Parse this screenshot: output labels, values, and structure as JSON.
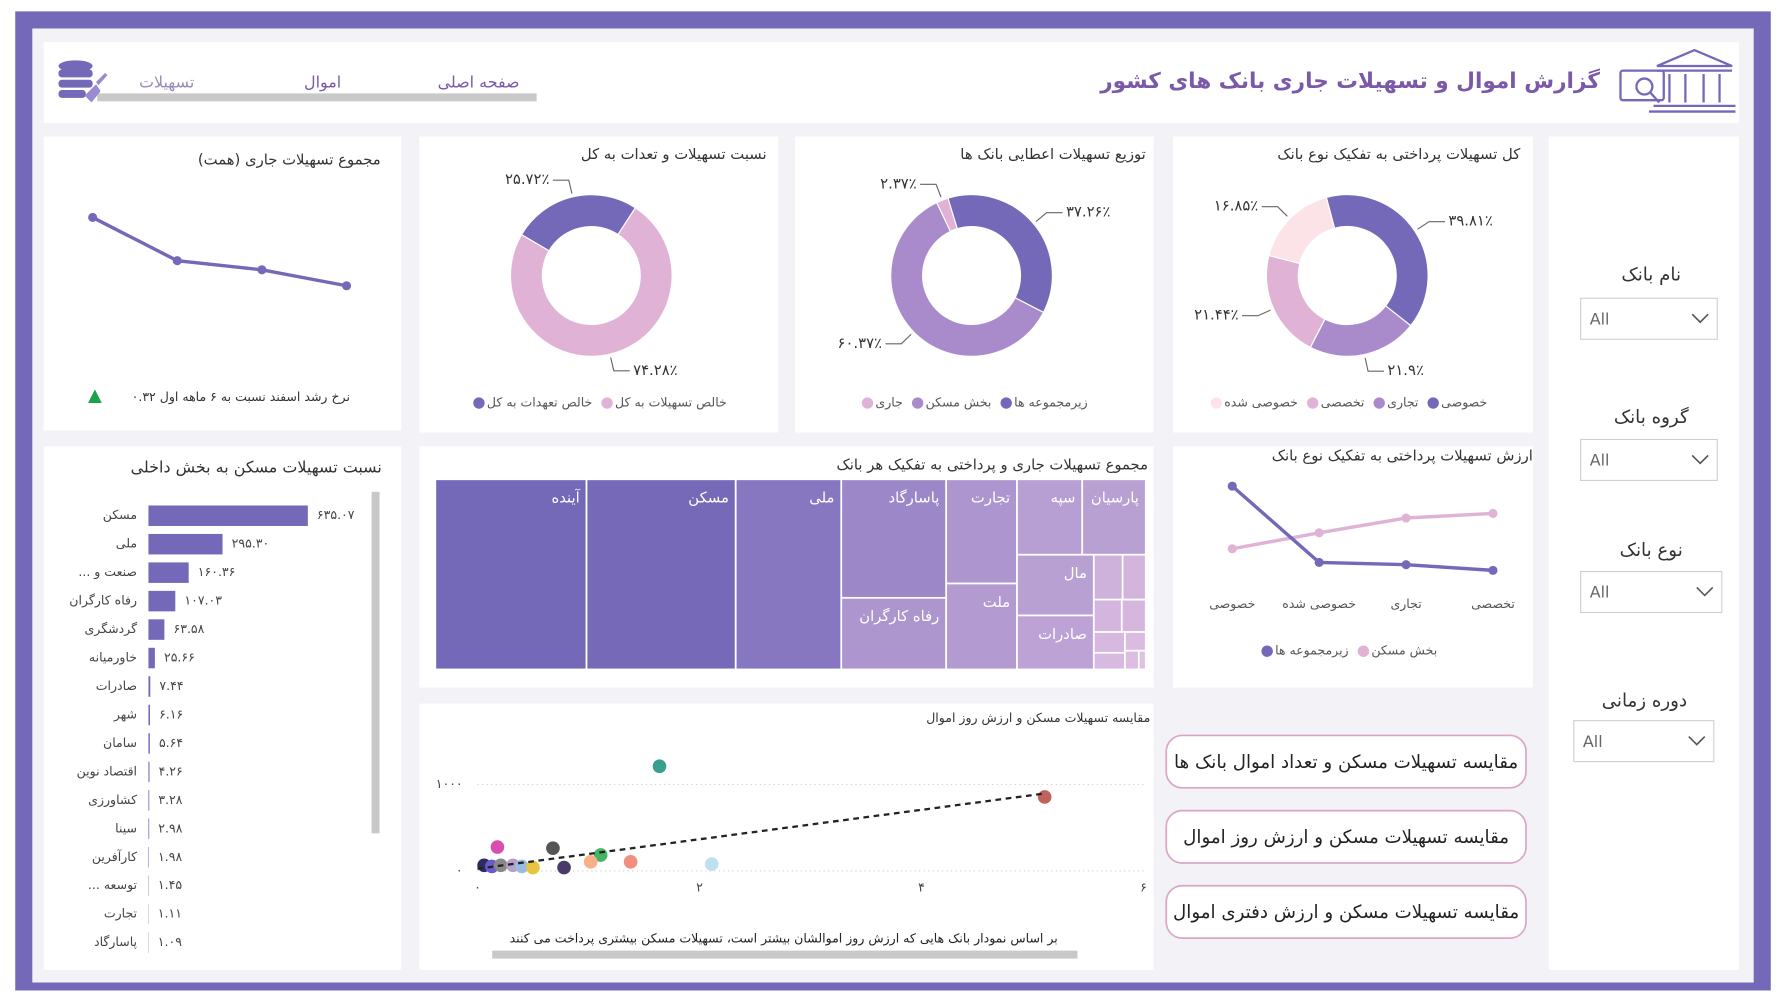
{
  "header": {
    "title": "گزارش اموال و تسهیلات جاری بانک های کشور",
    "nav": [
      "صفحه اصلی",
      "اموال",
      "تسهیلات"
    ]
  },
  "slicers": [
    {
      "label": "نام بانک",
      "value": "All"
    },
    {
      "label": "گروه بانک",
      "value": "All"
    },
    {
      "label": "نوع بانک",
      "value": "All"
    },
    {
      "label": "دوره زمانی",
      "value": "All"
    }
  ],
  "buttons": [
    "مقایسه تسهیلات مسکن و تعداد اموال بانک ها",
    "مقایسه تسهیلات مسکن و ارزش روز اموال",
    "مقایسه تسهیلات مسکن و ارزش دفتری اموال"
  ],
  "chart_data": [
    {
      "type": "line",
      "title": "مجموع تسهیلات جاری (همت)",
      "values": [
        8.5,
        6.6,
        6.2,
        5.5
      ],
      "color": "#7468b8",
      "annotation": "نرخ رشد اسفند نسبت به ۶ ماهه اول ۰.۳۲"
    },
    {
      "type": "pie",
      "donut": true,
      "title": "نسبت تسهیلات و تعدات به کل",
      "categories": [
        "خالص تسهیلات به کل",
        "خالص تعهدات به کل"
      ],
      "values": [
        74.28,
        25.72
      ],
      "value_labels": [
        "۷۴.۲۸٪",
        "۲۵.۷۲٪"
      ],
      "colors": [
        "#e0b3d6",
        "#7468b8"
      ]
    },
    {
      "type": "pie",
      "donut": true,
      "title": "توزیع تسهیلات اعطایی بانک ها",
      "categories": [
        "زیرمجموعه ها",
        "بخش مسکن",
        "جاری"
      ],
      "values": [
        37.26,
        60.37,
        2.37
      ],
      "value_labels": [
        "۳۷.۲۶٪",
        "۶۰.۳۷٪",
        "۲.۳۷٪"
      ],
      "colors": [
        "#7468b8",
        "#a98bcc",
        "#e0b3d6"
      ]
    },
    {
      "type": "pie",
      "donut": true,
      "title": "کل تسهیلات پرداختی به تفکیک نوع بانک",
      "categories": [
        "خصوصی",
        "تجاری",
        "تخصصی",
        "خصوصی شده"
      ],
      "values": [
        39.81,
        21.9,
        21.44,
        16.85
      ],
      "value_labels": [
        "۳۹.۸۱٪",
        "۲۱.۹٪",
        "۲۱.۴۴٪",
        "۱۶.۸۵٪"
      ],
      "colors": [
        "#7468b8",
        "#a98bcc",
        "#e0b3d6",
        "#fbe3e8"
      ]
    },
    {
      "type": "bar",
      "orientation": "horizontal",
      "title": "نسبت تسهیلات مسکن به بخش داخلی",
      "categories": [
        "مسکن",
        "ملی",
        "صنعت و ...",
        "رفاه کارگران",
        "گردشگری",
        "خاورمیانه",
        "صادرات",
        "شهر",
        "سامان",
        "اقتصاد نوین",
        "کشاورزی",
        "سینا",
        "کارآفرین",
        "توسعه ...",
        "تجارت",
        "پاسارگاد"
      ],
      "values": [
        635.07,
        295.3,
        160.36,
        107.03,
        63.58,
        25.66,
        7.44,
        6.16,
        5.64,
        4.26,
        3.28,
        2.98,
        1.98,
        1.45,
        1.11,
        1.09
      ],
      "value_labels": [
        "۶۳۵.۰۷",
        "۲۹۵.۳۰",
        "۱۶۰.۳۶",
        "۱۰۷.۰۳",
        "۶۳.۵۸",
        "۲۵.۶۶",
        "۷.۴۴",
        "۶.۱۶",
        "۵.۶۴",
        "۴.۲۶",
        "۳.۲۸",
        "۲.۹۸",
        "۱.۹۸",
        "۱.۴۵",
        "۱.۱۱",
        "۱.۰۹"
      ],
      "color": "#7468b8"
    },
    {
      "type": "treemap",
      "title": "مجموع تسهیلات جاری و پرداختی به تفکیک هر بانک",
      "categories": [
        "آینده",
        "مسکن",
        "ملی",
        "پاسارگاد",
        "رفاه کارگران",
        "تجارت",
        "ملت",
        "سپه",
        "پارسیان",
        "مال",
        "صادرات",
        null,
        null,
        null,
        null,
        null,
        null,
        null,
        null,
        null
      ],
      "values": [
        222,
        219,
        155,
        96,
        58,
        57,
        47,
        38,
        37,
        36,
        32,
        10,
        8,
        7,
        6,
        5,
        4,
        3,
        2,
        1
      ],
      "color_range": [
        "#7468b8",
        "#e8c6e6"
      ]
    },
    {
      "type": "line",
      "title": "ارزش تسهیلات پرداختی به تفکیک نوع بانک",
      "categories": [
        "خصوصی",
        "خصوصی شده",
        "تجاری",
        "تخصصی"
      ],
      "series": [
        {
          "name": "بخش مسکن",
          "color": "#e0b3d6",
          "values": [
            28,
            42,
            55,
            59
          ]
        },
        {
          "name": "زیرمجموعه ها",
          "color": "#7468b8",
          "values": [
            83,
            16,
            14,
            9
          ]
        }
      ]
    },
    {
      "type": "scatter",
      "title": "مقایسه تسهیلات مسکن و ارزش روز اموال",
      "x": [
        1.64,
        5.11,
        0.18,
        0.68,
        1.11,
        1.38,
        1.02,
        2.11,
        0.78,
        0.06,
        0.13,
        0.21,
        0.32,
        0.4,
        0.5
      ],
      "y": [
        1210,
        855,
        276,
        263,
        184,
        105,
        105,
        79,
        39,
        65,
        52,
        65,
        65,
        52,
        39
      ],
      "colors": [
        "#3a9e8f",
        "#c0625e",
        "#d94fb0",
        "#555555",
        "#44b564",
        "#f08f7f",
        "#f7b08a",
        "#bfe0f2",
        "#4a3a6a",
        "#2b2d5e",
        "#6a5acd",
        "#888888",
        "#b9a0c9",
        "#99bbdd",
        "#e8c440"
      ],
      "trendline": {
        "x": [
          0,
          5.11
        ],
        "y": [
          26,
          895
        ]
      },
      "xlim": [
        0,
        6
      ],
      "ylim": [
        0,
        1650
      ],
      "xticks": [
        {
          "value": 0,
          "label": "۰"
        },
        {
          "value": 2,
          "label": "۲"
        },
        {
          "value": 4,
          "label": "۴"
        },
        {
          "value": 6,
          "label": "۶"
        }
      ],
      "yticks": [
        {
          "value": 0,
          "label": "۰"
        },
        {
          "value": 1000,
          "label": "۱۰۰۰"
        }
      ],
      "grid": true,
      "annotation": "بر اساس نمودار بانک هایی که ارزش روز اموالشان بیشتر است، تسهیلات مسکن بیشتری پرداخت می کنند"
    }
  ]
}
